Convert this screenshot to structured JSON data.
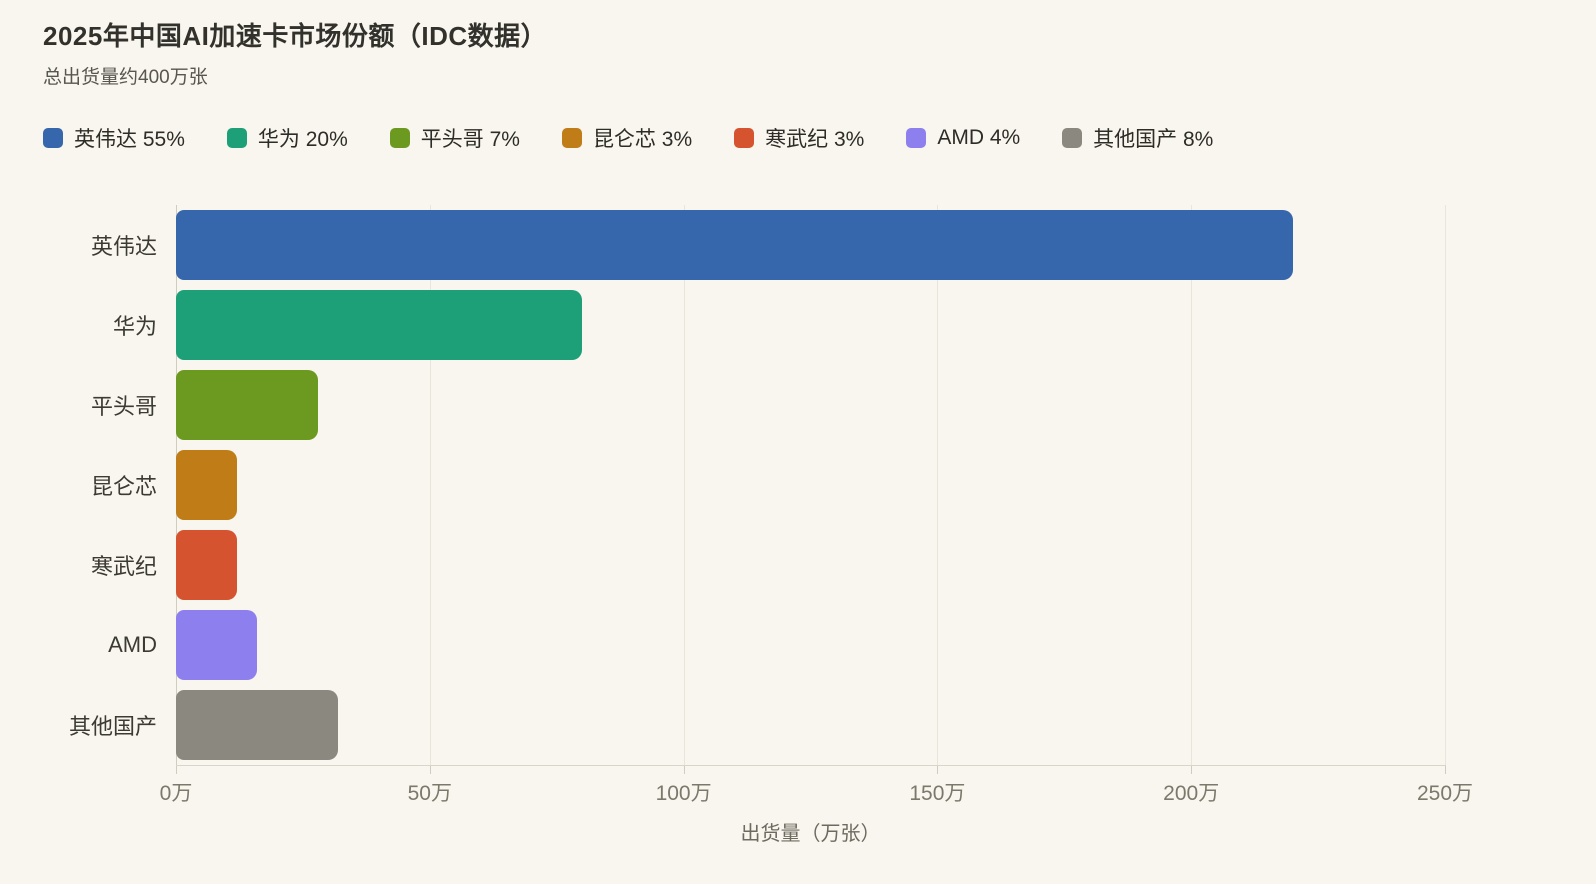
{
  "chart_data": {
    "type": "bar",
    "orientation": "horizontal",
    "title": "2025年中国AI加速卡市场份额（IDC数据）",
    "subtitle": "总出货量约400万张",
    "categories": [
      "英伟达",
      "华为",
      "平头哥",
      "昆仑芯",
      "寒武纪",
      "AMD",
      "其他国产"
    ],
    "values": [
      220,
      80,
      28,
      12,
      12,
      16,
      32
    ],
    "value_unit": "万张",
    "percent_share": [
      55,
      20,
      7,
      3,
      3,
      4,
      8
    ],
    "legend": [
      "英伟达 55%",
      "华为 20%",
      "平头哥 7%",
      "昆仑芯 3%",
      "寒武纪 3%",
      "AMD 4%",
      "其他国产 8%"
    ],
    "colors": [
      "#3666ac",
      "#1da077",
      "#6c9a20",
      "#bf7c17",
      "#d5532e",
      "#8d80ee",
      "#8b8880"
    ],
    "xticks": [
      "0万",
      "50万",
      "100万",
      "150万",
      "200万",
      "250万"
    ],
    "xlim": [
      0,
      250
    ],
    "xlabel": "出货量（万张）",
    "legend_position": "top",
    "grid": true,
    "background": "#f8f6ee"
  }
}
